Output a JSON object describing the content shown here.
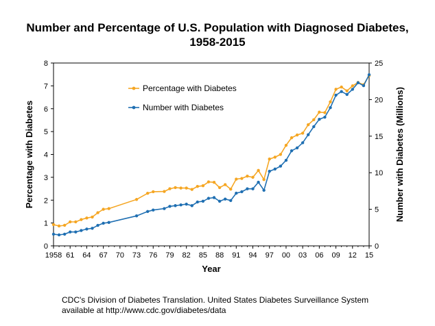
{
  "chart_data": {
    "type": "line",
    "title_line1": "Number and Percentage of U.S. Population with Diagnosed Diabetes,",
    "title_line2": "1958-2015",
    "xlabel": "Year",
    "ylabel_left": "Percentage with Diabetes",
    "ylabel_right": "Number with Diabetes (Millions)",
    "x_ticks": [
      "1958",
      "61",
      "64",
      "67",
      "70",
      "73",
      "76",
      "79",
      "82",
      "85",
      "88",
      "91",
      "94",
      "97",
      "00",
      "03",
      "06",
      "09",
      "12",
      "15"
    ],
    "y_left_ticks": [
      "0",
      "1",
      "2",
      "3",
      "4",
      "5",
      "6",
      "7",
      "8"
    ],
    "y_right_ticks": [
      "0",
      "5",
      "10",
      "15",
      "20",
      "25"
    ],
    "xlim": [
      1958,
      2015
    ],
    "ylim_left": [
      0,
      8
    ],
    "ylim_right": [
      0,
      25
    ],
    "grid": false,
    "legend_position": "top-left",
    "series": [
      {
        "name": "Percentage with Diabetes",
        "axis": "left",
        "color": "#F5A623",
        "x": [
          1958,
          1959,
          1960,
          1961,
          1962,
          1963,
          1964,
          1965,
          1966,
          1967,
          1968,
          1973,
          1975,
          1976,
          1978,
          1979,
          1980,
          1981,
          1982,
          1983,
          1984,
          1985,
          1986,
          1987,
          1988,
          1989,
          1990,
          1991,
          1992,
          1993,
          1994,
          1995,
          1996,
          1997,
          1998,
          1999,
          2000,
          2001,
          2002,
          2003,
          2004,
          2005,
          2006,
          2007,
          2008,
          2009,
          2010,
          2011,
          2012,
          2013,
          2014,
          2015
        ],
        "values": [
          0.93,
          0.87,
          0.9,
          1.05,
          1.05,
          1.15,
          1.22,
          1.26,
          1.45,
          1.6,
          1.63,
          2.03,
          2.3,
          2.37,
          2.38,
          2.5,
          2.55,
          2.53,
          2.53,
          2.47,
          2.6,
          2.63,
          2.8,
          2.78,
          2.55,
          2.68,
          2.48,
          2.92,
          2.95,
          3.05,
          3.0,
          3.3,
          2.9,
          3.8,
          3.88,
          4.0,
          4.4,
          4.73,
          4.85,
          4.93,
          5.3,
          5.52,
          5.85,
          5.83,
          6.3,
          6.85,
          6.95,
          6.78,
          7.0,
          7.15,
          7.05,
          7.45
        ]
      },
      {
        "name": "Number with Diabetes",
        "axis": "right",
        "color": "#1F6FB2",
        "x": [
          1958,
          1959,
          1960,
          1961,
          1962,
          1963,
          1964,
          1965,
          1966,
          1967,
          1968,
          1973,
          1975,
          1976,
          1978,
          1979,
          1980,
          1981,
          1982,
          1983,
          1984,
          1985,
          1986,
          1987,
          1988,
          1989,
          1990,
          1991,
          1992,
          1993,
          1994,
          1995,
          1996,
          1997,
          1998,
          1999,
          2000,
          2001,
          2002,
          2003,
          2004,
          2005,
          2006,
          2007,
          2008,
          2009,
          2010,
          2011,
          2012,
          2013,
          2014,
          2015
        ],
        "values": [
          1.6,
          1.5,
          1.6,
          1.9,
          1.9,
          2.1,
          2.3,
          2.4,
          2.8,
          3.1,
          3.2,
          4.1,
          4.7,
          4.9,
          5.1,
          5.4,
          5.5,
          5.6,
          5.7,
          5.5,
          6.0,
          6.1,
          6.5,
          6.6,
          6.1,
          6.4,
          6.2,
          7.2,
          7.4,
          7.8,
          7.8,
          8.7,
          7.6,
          10.2,
          10.5,
          10.9,
          11.7,
          13.0,
          13.4,
          14.1,
          15.2,
          16.3,
          17.3,
          17.6,
          18.9,
          20.6,
          21.1,
          20.7,
          21.4,
          22.3,
          21.9,
          23.4
        ]
      }
    ]
  },
  "source": {
    "line1": "CDC's Division of Diabetes Translation. United States Diabetes Surveillance System",
    "line2": "available at http://www.cdc.gov/diabetes/data"
  }
}
